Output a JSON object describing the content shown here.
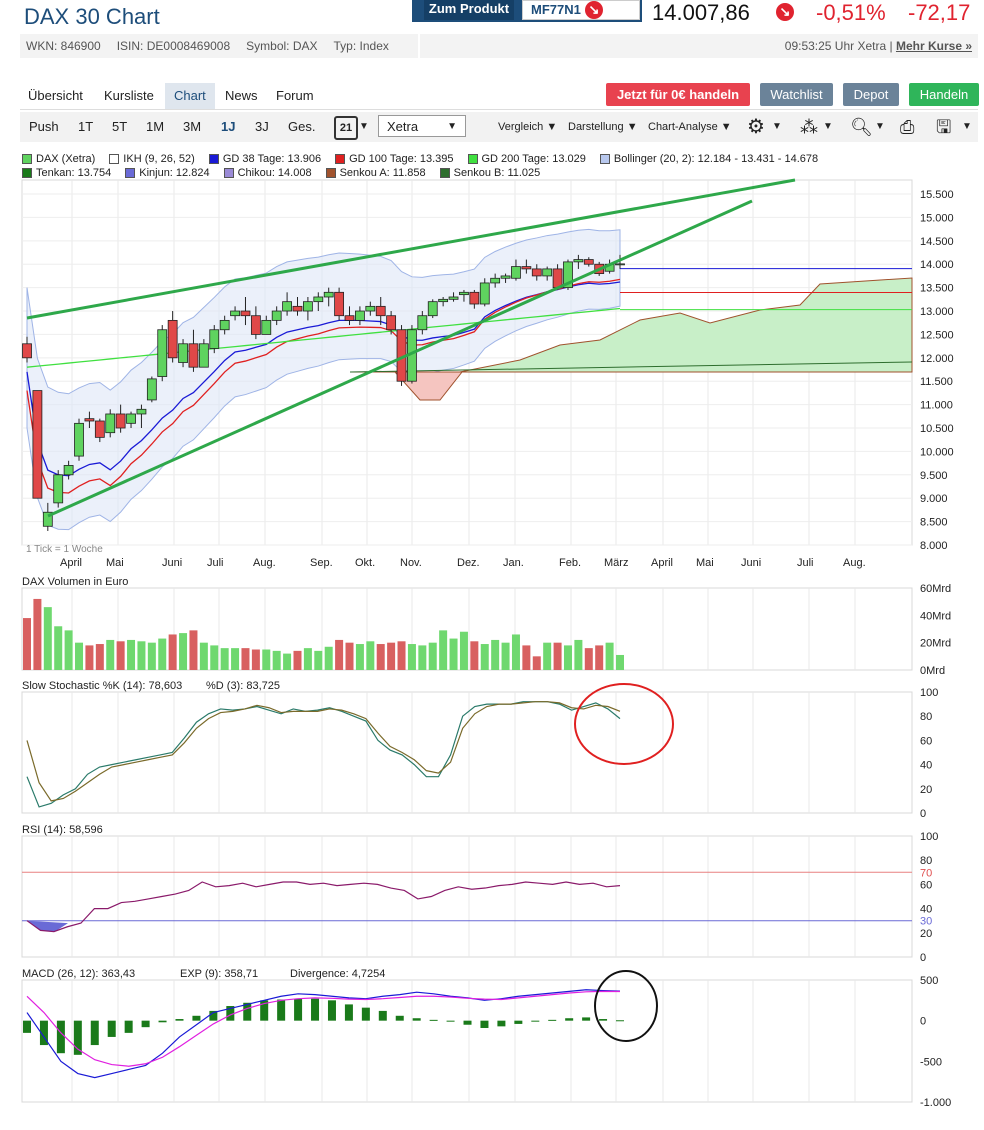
{
  "header": {
    "title": "DAX 30 Chart",
    "wkn": "WKN: 846900",
    "isin": "ISIN: DE0008469008",
    "symbol": "Symbol: DAX",
    "type": "Typ: Index",
    "product_button": "Zum Produkt",
    "product_code": "MF77N1",
    "price": "14.007,86",
    "change_pct": "-0,51%",
    "change_abs": "-72,17",
    "time": "09:53:25 Uhr Xetra |",
    "more_prices": "Mehr Kurse »"
  },
  "tabs": [
    "Übersicht",
    "Kursliste",
    "Chart",
    "News",
    "Forum"
  ],
  "actions": {
    "trade_free": "Jetzt für 0€ handeln",
    "watchlist": "Watchlist",
    "depot": "Depot",
    "handeln": "Handeln"
  },
  "toolbar": {
    "ranges": [
      "Push",
      "1T",
      "5T",
      "1M",
      "3M",
      "1J",
      "3J",
      "Ges."
    ],
    "calendar": "21",
    "exchange": "Xetra",
    "compare": "Vergleich",
    "display": "Darstellung",
    "analysis": "Chart-Analyse"
  },
  "legend": {
    "row1": [
      {
        "label": "DAX (Xetra)",
        "color": "#5fd35f"
      },
      {
        "label": "IKH (9, 26, 52)",
        "color": "#ffffff"
      },
      {
        "label": "GD 38 Tage: 13.906",
        "color": "#1a1ad6"
      },
      {
        "label": "GD 100 Tage: 13.395",
        "color": "#e02020"
      },
      {
        "label": "GD 200 Tage: 13.029",
        "color": "#40e040"
      },
      {
        "label": "Bollinger (20, 2): 12.184 - 13.431 - 14.678",
        "color": "#b8c8ee"
      }
    ],
    "row2": [
      {
        "label": "Tenkan: 13.754",
        "color": "#1a7a1a"
      },
      {
        "label": "Kinjun: 12.824",
        "color": "#6a6ad6"
      },
      {
        "label": "Chikou: 14.008",
        "color": "#9a8ad6"
      },
      {
        "label": "Senkou A: 11.858",
        "color": "#a0522d"
      },
      {
        "label": "Senkou B: 11.025",
        "color": "#2e6e2e"
      }
    ]
  },
  "tick_note": "1 Tick = 1 Woche",
  "price_axis": [
    "15.500",
    "15.000",
    "14.500",
    "14.000",
    "13.500",
    "13.000",
    "12.500",
    "12.000",
    "11.500",
    "11.000",
    "10.500",
    "10.000",
    "9.500",
    "9.000",
    "8.500",
    "8.000"
  ],
  "months": [
    "April",
    "Mai",
    "Juni",
    "Juli",
    "Aug.",
    "Sep.",
    "Okt.",
    "Nov.",
    "Dez.",
    "Jan.",
    "Feb.",
    "März",
    "April",
    "Mai",
    "Juni",
    "Juli",
    "Aug."
  ],
  "volume": {
    "label": "DAX Volumen in Euro",
    "axis": [
      "60Mrd",
      "40Mrd",
      "20Mrd",
      "0Mrd"
    ]
  },
  "stochastic": {
    "label1": "Slow Stochastic %K (14): 78,603",
    "label2": "%D (3): 83,725",
    "axis": [
      "100",
      "80",
      "60",
      "40",
      "20",
      "0"
    ]
  },
  "rsi": {
    "label": "RSI (14): 58,596",
    "axis": [
      "100",
      "80",
      "70",
      "60",
      "40",
      "30",
      "20",
      "0"
    ]
  },
  "macd": {
    "label1": "MACD (26, 12): 363,43",
    "label2": "EXP (9): 358,71",
    "label3": "Divergence: 4,7254",
    "axis": [
      "500",
      "0",
      "-500",
      "-1.000"
    ]
  },
  "chart_data": [
    {
      "type": "candlestick",
      "title": "DAX 30 Chart",
      "interval": "1 Tick = 1 Woche",
      "ylim": [
        8000,
        15800
      ],
      "weeks": [
        [
          12300,
          12450,
          11900,
          12000
        ],
        [
          11300,
          11300,
          9200,
          9000
        ],
        [
          8400,
          8900,
          8300,
          8700
        ],
        [
          8900,
          9600,
          8800,
          9500
        ],
        [
          9500,
          9800,
          9400,
          9700
        ],
        [
          9900,
          10700,
          9800,
          10600
        ],
        [
          10700,
          10850,
          10500,
          10650
        ],
        [
          10650,
          10700,
          10200,
          10300
        ],
        [
          10400,
          10900,
          10300,
          10800
        ],
        [
          10800,
          11000,
          10400,
          10500
        ],
        [
          10600,
          10850,
          10500,
          10800
        ],
        [
          10800,
          11000,
          10500,
          10900
        ],
        [
          11100,
          11600,
          11050,
          11550
        ],
        [
          11600,
          12700,
          11500,
          12600
        ],
        [
          12800,
          13000,
          11900,
          12000
        ],
        [
          11900,
          12400,
          11800,
          12300
        ],
        [
          12300,
          12600,
          11700,
          11800
        ],
        [
          11800,
          12400,
          11800,
          12300
        ],
        [
          12200,
          12700,
          12100,
          12600
        ],
        [
          12600,
          12900,
          12500,
          12800
        ],
        [
          12900,
          13100,
          12800,
          13000
        ],
        [
          13000,
          13300,
          12700,
          12900
        ],
        [
          12900,
          13100,
          12400,
          12500
        ],
        [
          12500,
          12900,
          12500,
          12800
        ],
        [
          12800,
          13100,
          12700,
          13000
        ],
        [
          13000,
          13400,
          12900,
          13200
        ],
        [
          13100,
          13300,
          12900,
          13000
        ],
        [
          13000,
          13300,
          12800,
          13200
        ],
        [
          13200,
          13400,
          13000,
          13300
        ],
        [
          13300,
          13500,
          13100,
          13400
        ],
        [
          13400,
          13500,
          12800,
          12900
        ],
        [
          12900,
          13100,
          12700,
          12800
        ],
        [
          12800,
          13100,
          12700,
          13000
        ],
        [
          13000,
          13200,
          12900,
          13100
        ],
        [
          13100,
          13300,
          12700,
          12900
        ],
        [
          12900,
          13000,
          12500,
          12600
        ],
        [
          12600,
          12700,
          11400,
          11500
        ],
        [
          11500,
          12700,
          11450,
          12600
        ],
        [
          12600,
          13000,
          12500,
          12900
        ],
        [
          12900,
          13250,
          12850,
          13200
        ],
        [
          13200,
          13300,
          13100,
          13250
        ],
        [
          13250,
          13400,
          13200,
          13300
        ],
        [
          13350,
          13450,
          13200,
          13400
        ],
        [
          13400,
          13450,
          13050,
          13150
        ],
        [
          13150,
          13700,
          13100,
          13600
        ],
        [
          13600,
          13800,
          13500,
          13700
        ],
        [
          13700,
          13800,
          13600,
          13750
        ],
        [
          13700,
          14100,
          13650,
          13950
        ],
        [
          13950,
          14100,
          13800,
          13900
        ],
        [
          13900,
          14000,
          13650,
          13750
        ],
        [
          13750,
          13950,
          13650,
          13900
        ],
        [
          13900,
          14000,
          13450,
          13500
        ],
        [
          13500,
          14100,
          13450,
          14050
        ],
        [
          14050,
          14200,
          13900,
          14100
        ],
        [
          14100,
          14150,
          13950,
          14000
        ],
        [
          14000,
          14050,
          13750,
          13800
        ],
        [
          13850,
          14100,
          13800,
          14000
        ],
        [
          14000,
          14200,
          13900,
          14008
        ]
      ],
      "gd38": 13906,
      "gd100": 13395,
      "gd200": 13029,
      "bollinger": [
        12184,
        13431,
        14678
      ],
      "tenkan": 13754,
      "kinjun": 12824,
      "chikou": 14008,
      "senkou_a": 11858,
      "senkou_b": 11025
    },
    {
      "type": "bar",
      "title": "DAX Volumen in Euro",
      "unit": "Mrd",
      "ylim": [
        0,
        60
      ],
      "values": [
        38,
        52,
        46,
        32,
        29,
        20,
        18,
        19,
        22,
        21,
        22,
        21,
        20,
        23,
        26,
        27,
        29,
        20,
        18,
        16,
        16,
        16,
        15,
        15,
        14,
        12,
        14,
        16,
        14,
        17,
        22,
        20,
        19,
        21,
        19,
        20,
        21,
        19,
        18,
        20,
        29,
        23,
        28,
        21,
        19,
        22,
        20,
        26,
        18,
        10,
        20,
        20,
        18,
        22,
        16,
        18,
        20,
        11
      ]
    },
    {
      "type": "line",
      "title": "Slow Stochastic",
      "ylim": [
        0,
        100
      ],
      "series": [
        {
          "name": "Slow Stochastic %K (14): 78,603",
          "values": [
            30,
            5,
            8,
            15,
            20,
            32,
            38,
            40,
            42,
            44,
            46,
            48,
            50,
            62,
            75,
            82,
            86,
            85,
            86,
            88,
            85,
            82,
            86,
            84,
            85,
            87,
            84,
            80,
            76,
            60,
            52,
            48,
            40,
            30,
            30,
            48,
            80,
            88,
            90,
            90,
            90,
            92,
            92,
            92,
            90,
            85,
            88,
            91,
            86,
            78
          ]
        },
        {
          "name": "%D (3): 83,725",
          "values": [
            60,
            25,
            10,
            12,
            18,
            25,
            32,
            38,
            40,
            42,
            44,
            46,
            48,
            58,
            70,
            78,
            83,
            84,
            86,
            89,
            87,
            83,
            84,
            84,
            84,
            86,
            85,
            82,
            78,
            66,
            55,
            50,
            44,
            35,
            33,
            42,
            70,
            82,
            88,
            90,
            90,
            91,
            92,
            92,
            91,
            87,
            86,
            89,
            88,
            84
          ]
        }
      ]
    },
    {
      "type": "line",
      "title": "RSI (14)",
      "ylim": [
        0,
        100
      ],
      "levels": [
        30,
        70
      ],
      "series": [
        {
          "name": "RSI (14): 58,596",
          "values": [
            30,
            22,
            21,
            25,
            28,
            40,
            40,
            45,
            46,
            48,
            50,
            52,
            55,
            62,
            58,
            59,
            61,
            58,
            60,
            62,
            62,
            60,
            61,
            59,
            60,
            61,
            60,
            57,
            55,
            48,
            50,
            55,
            58,
            56,
            57,
            59,
            60,
            62,
            61,
            60,
            62,
            60,
            61,
            58,
            59
          ]
        }
      ]
    },
    {
      "type": "line",
      "title": "MACD",
      "ylim": [
        -1000,
        500
      ],
      "series": [
        {
          "name": "MACD (26, 12): 363,43",
          "values": [
            100,
            -200,
            -500,
            -650,
            -700,
            -650,
            -600,
            -550,
            -400,
            -200,
            -50,
            100,
            150,
            200,
            250,
            300,
            330,
            320,
            300,
            280,
            270,
            300,
            320,
            350,
            330,
            300,
            280,
            250,
            270,
            300,
            320,
            340,
            360,
            380,
            370,
            363
          ]
        },
        {
          "name": "EXP (9): 358,71",
          "values": [
            300,
            100,
            -150,
            -350,
            -480,
            -540,
            -560,
            -530,
            -450,
            -320,
            -180,
            -40,
            70,
            150,
            210,
            250,
            270,
            280,
            275,
            265,
            260,
            270,
            285,
            300,
            300,
            290,
            275,
            265,
            260,
            280,
            300,
            320,
            340,
            355,
            360,
            359
          ]
        },
        {
          "name": "Divergence: 4,7254",
          "values": [
            -150,
            -300,
            -400,
            -420,
            -300,
            -200,
            -150,
            -80,
            -20,
            20,
            60,
            120,
            180,
            220,
            250,
            260,
            270,
            270,
            250,
            200,
            160,
            120,
            60,
            30,
            10,
            -10,
            -50,
            -90,
            -70,
            -40,
            0,
            10,
            30,
            40,
            20,
            5
          ]
        }
      ]
    }
  ]
}
